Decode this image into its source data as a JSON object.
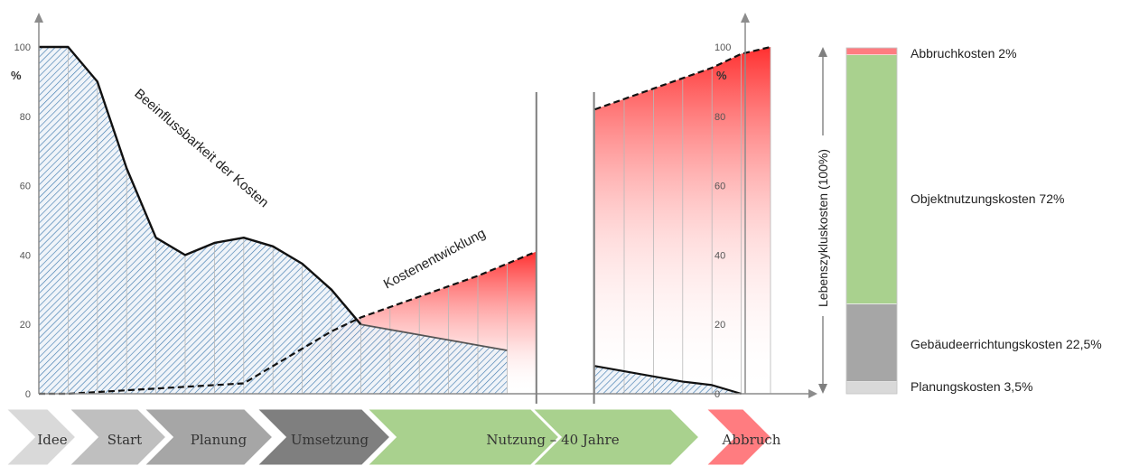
{
  "chart_data": {
    "type": "area",
    "y_ticks": [
      "0",
      "20",
      "40",
      "60",
      "80",
      "100"
    ],
    "y_unit": "%",
    "ylim": [
      0,
      100
    ],
    "annotations": {
      "influence": "Beeinflussbarkeit der Kosten",
      "costs": "Kostenentwicklung"
    },
    "phases": [
      "Idee",
      "Start",
      "Planung",
      "Umsetzung",
      "Nutzung – 40 Jahre",
      "Abbruch"
    ],
    "series": [
      {
        "values": [
          100,
          100,
          90,
          65,
          45,
          40,
          43.5,
          45,
          42.5,
          37.5,
          30,
          20,
          18.5,
          17,
          15.5,
          14,
          12.5,
          null,
          null,
          8,
          6.5,
          5,
          3.5,
          2.5,
          0
        ]
      },
      {
        "values": [
          0,
          0,
          0.5,
          1,
          1.5,
          2,
          2.5,
          3,
          8,
          13,
          18,
          22,
          25,
          28,
          31,
          34,
          37.5,
          41,
          null,
          82,
          85,
          88,
          91,
          94,
          98,
          100
        ]
      }
    ],
    "lifecycle": {
      "axis_label": "Lebenszykluskosten (100%)",
      "segments": [
        {
          "label": "Planungskosten 3,5%",
          "value": 3.5,
          "color": "#d9d9d9"
        },
        {
          "label": "Gebäudeerrichtungskosten 22,5%",
          "value": 22.5,
          "color": "#a6a6a6"
        },
        {
          "label": "Objektnutzungskosten 72%",
          "value": 72,
          "color": "#a9d18e"
        },
        {
          "label": "Abbruchkosten 2%",
          "value": 2,
          "color": "#ff7c80"
        }
      ]
    },
    "colors": {
      "hatch": "#2f6fa8",
      "hatch_bg": "#eef3f8",
      "cost_red": "#ff3030",
      "phase_grey_light": "#d9d9d9",
      "phase_grey": "#bfbfbf",
      "phase_grey_mid": "#a6a6a6",
      "phase_grey_dark": "#7f7f7f",
      "phase_green": "#a9d18e",
      "phase_red": "#ff7c80"
    }
  }
}
